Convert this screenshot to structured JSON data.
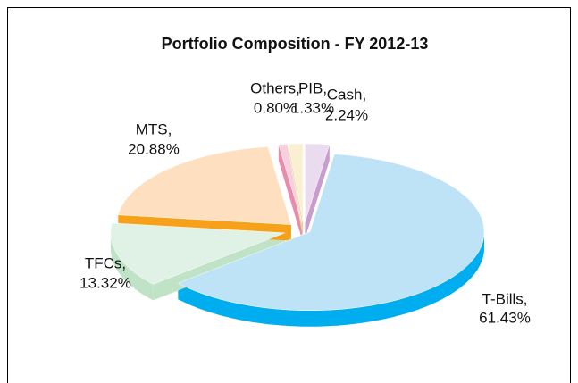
{
  "chart_data": {
    "type": "pie",
    "title": "Portfolio Composition - FY 2012-13",
    "categories": [
      "Cash,",
      "T-Bills,",
      "TFCs,",
      "MTS,",
      "Others,",
      "PIB,"
    ],
    "values": [
      2.24,
      61.43,
      13.32,
      20.88,
      0.8,
      1.33
    ],
    "value_labels": [
      "2.24%",
      "61.43%",
      "13.32%",
      "20.88%",
      "0.80%",
      "1.33%"
    ],
    "colors": [
      "#eadcee",
      "#bfe3f6",
      "#dff2e5",
      "#fee0c0",
      "#f8cfdc",
      "#fbefd2"
    ],
    "side_colors": [
      "#c89dcd",
      "#00aeef",
      "#c0e2c6",
      "#f7a11a",
      "#e98cab",
      "#e6d59c"
    ],
    "three_d": true
  }
}
